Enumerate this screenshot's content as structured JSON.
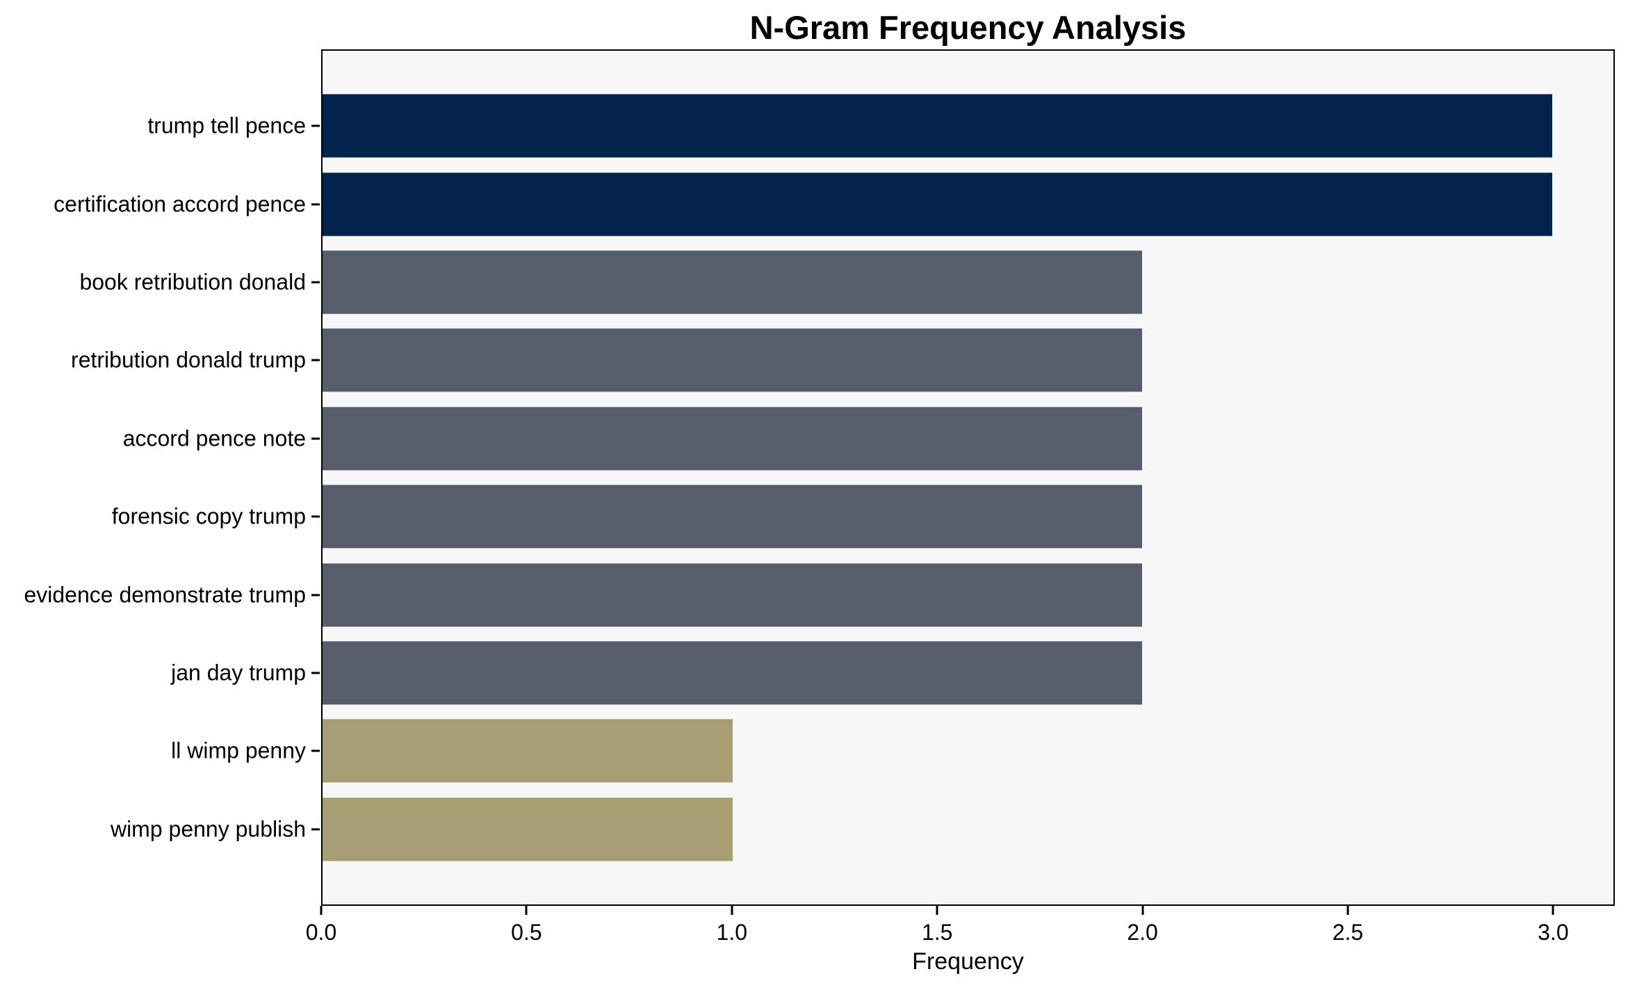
{
  "chart_data": {
    "type": "bar",
    "orientation": "horizontal",
    "title": "N-Gram Frequency Analysis",
    "xlabel": "Frequency",
    "ylabel": "",
    "categories": [
      "trump tell pence",
      "certification accord pence",
      "book retribution donald",
      "retribution donald trump",
      "accord pence note",
      "forensic copy trump",
      "evidence demonstrate trump",
      "jan day trump",
      "ll wimp penny",
      "wimp penny publish"
    ],
    "values": [
      3,
      3,
      2,
      2,
      2,
      2,
      2,
      2,
      1,
      1
    ],
    "bar_colors": [
      "#02234c",
      "#02234c",
      "#575d6b",
      "#575d6b",
      "#575d6b",
      "#575d6b",
      "#575d6b",
      "#575d6b",
      "#a69d73",
      "#a69d73"
    ],
    "value_color_map": {
      "3": "#02234c",
      "2": "#575d6b",
      "1": "#a69d73"
    },
    "xlim": [
      0,
      3.15
    ],
    "xticks": [
      0.0,
      0.5,
      1.0,
      1.5,
      2.0,
      2.5,
      3.0
    ],
    "xtick_labels": [
      "0.0",
      "0.5",
      "1.0",
      "1.5",
      "2.0",
      "2.5",
      "3.0"
    ],
    "grid": false,
    "legend": null,
    "plot_background": "#f7f7f7",
    "figure_background": "#ffffff"
  }
}
